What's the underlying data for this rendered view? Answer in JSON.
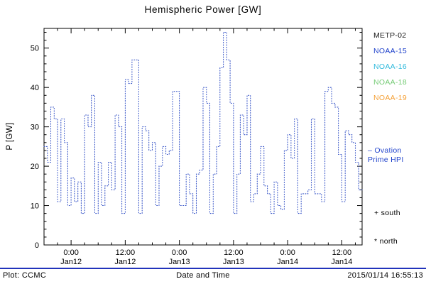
{
  "title": "Hemispheric Power [GW]",
  "ylabel": "P [GW]",
  "xlabel": "Date and Time",
  "footer": {
    "left": "Plot: CCMC",
    "right": "2015/01/14 16:55:13",
    "rule_color": "#2233bb"
  },
  "legend": {
    "items": [
      {
        "label": "METP-02",
        "color": "#1a1a1a"
      },
      {
        "label": "NOAA-15",
        "color": "#2244cc"
      },
      {
        "label": "NOAA-16",
        "color": "#33bbdd"
      },
      {
        "label": "NOAA-18",
        "color": "#77cc77"
      },
      {
        "label": "NOAA-19",
        "color": "#f5a33c"
      }
    ]
  },
  "annotations": {
    "ovation": "– Ovation\nPrime HPI",
    "ovation_color": "#2244cc",
    "south": "+ south",
    "north": "* north"
  },
  "chart_data": {
    "type": "line",
    "subtype": "step",
    "title": "Hemispheric Power [GW]",
    "xlabel": "Date and Time",
    "ylabel": "P [GW]",
    "grid": false,
    "legend_position": "right-outside",
    "line_color": "#3a57c8",
    "line_style": "dotted",
    "ylim": [
      0,
      55
    ],
    "yticks": [
      0,
      10,
      20,
      30,
      40,
      50
    ],
    "y_minor_step": 2,
    "x_unit": "hours relative to Jan12 00:00",
    "xlim_hours": [
      -6,
      64.5
    ],
    "x_minor_step_hours": 3,
    "x_ticks": [
      {
        "hours": 0,
        "time": "0:00",
        "date": "Jan12"
      },
      {
        "hours": 12,
        "time": "12:00",
        "date": "Jan12"
      },
      {
        "hours": 24,
        "time": "0:00",
        "date": "Jan13"
      },
      {
        "hours": 36,
        "time": "12:00",
        "date": "Jan13"
      },
      {
        "hours": 48,
        "time": "0:00",
        "date": "Jan14"
      },
      {
        "hours": 60,
        "time": "12:00",
        "date": "Jan14"
      }
    ],
    "x_start_hours": -6,
    "x_step_hours": 0.75,
    "values": [
      25,
      21,
      35,
      32,
      11,
      32,
      26,
      10,
      17,
      11,
      16,
      8,
      33,
      30,
      38,
      8,
      21,
      10,
      15,
      21,
      14,
      33,
      30,
      8,
      42,
      41,
      47,
      47,
      8,
      30,
      29,
      24,
      26,
      10,
      20,
      25,
      23,
      24,
      39,
      39,
      10,
      10,
      18,
      13,
      8,
      18,
      19,
      40,
      36,
      8,
      18,
      25,
      45,
      54,
      47,
      36,
      8,
      18,
      33,
      28,
      38,
      11,
      13,
      18,
      25,
      15,
      13,
      8,
      16,
      10,
      9,
      24,
      28,
      22,
      32,
      8,
      13,
      13,
      14,
      32,
      13,
      13,
      11,
      39,
      40,
      36,
      35,
      23,
      11,
      29,
      28,
      26,
      21,
      14
    ]
  }
}
